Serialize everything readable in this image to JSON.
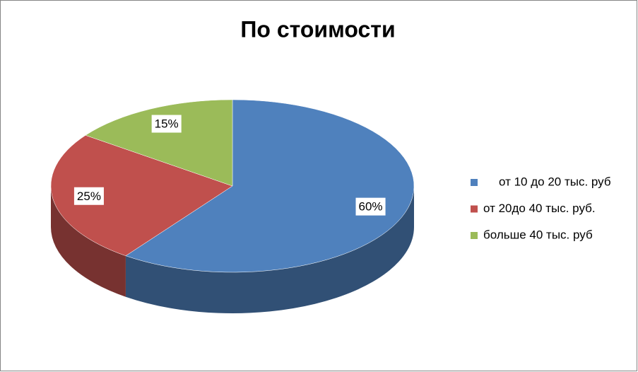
{
  "chart_data": {
    "type": "pie",
    "title": "По стоимости",
    "categories": [
      "от 10 до 20 тыс. руб",
      "от 20до 40 тыс. руб.",
      "больше 40 тыс. руб"
    ],
    "values": [
      60,
      25,
      15
    ],
    "value_labels": [
      "60%",
      "25%",
      "15%"
    ],
    "colors": [
      "#4f81bd",
      "#c0504d",
      "#9bbb59"
    ],
    "legend": "right"
  }
}
